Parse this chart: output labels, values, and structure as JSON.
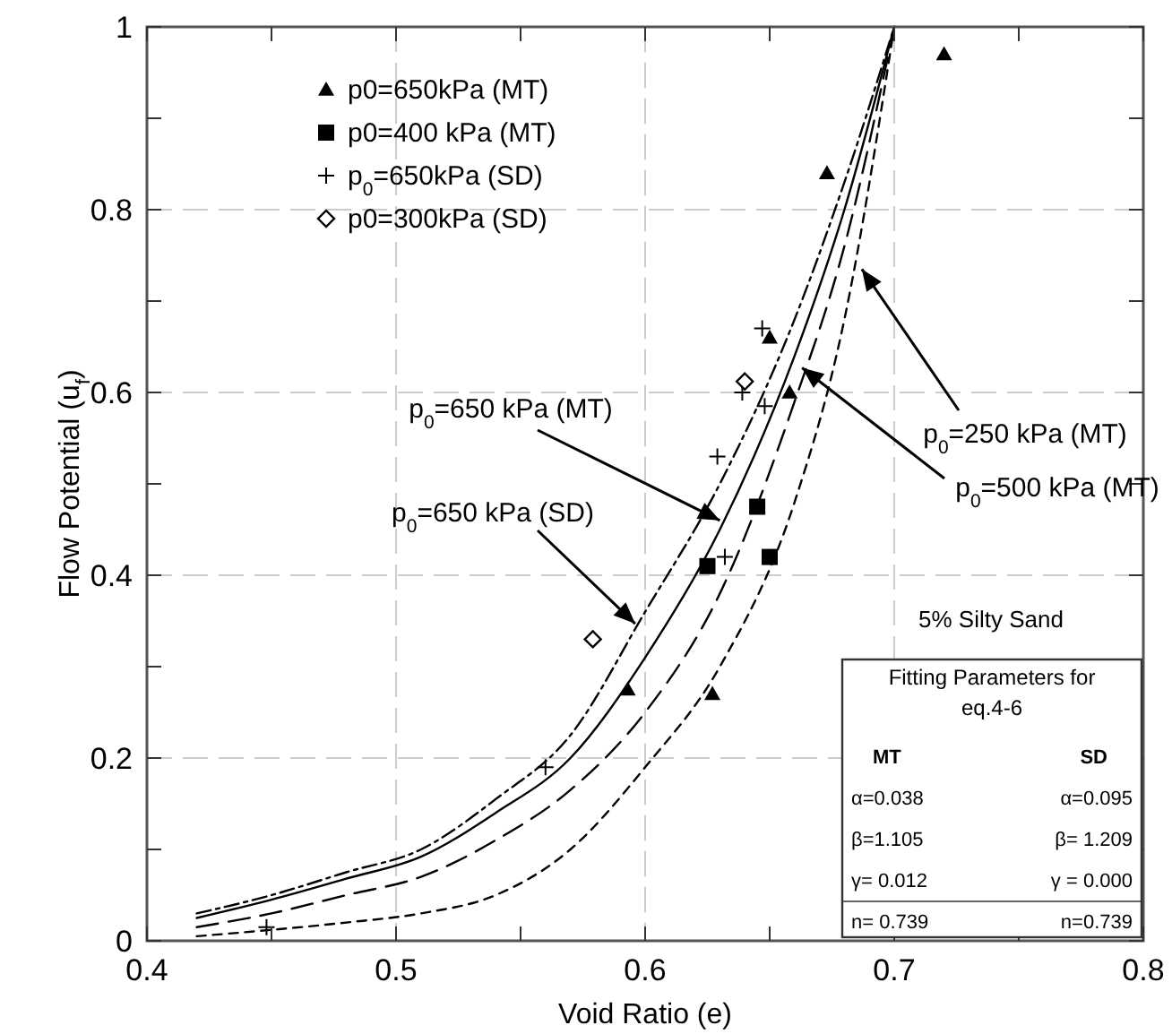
{
  "chart_data": {
    "type": "scatter",
    "xlabel": "Void Ratio (e)",
    "ylabel": "Flow Potential (u$_{f}$)",
    "xlim": [
      0.4,
      0.8
    ],
    "xticks": [
      0.4,
      0.5,
      0.6,
      0.7,
      0.8
    ],
    "ylim": [
      0,
      1
    ],
    "yticks": [
      0,
      0.2,
      0.4,
      0.6,
      0.8,
      1
    ],
    "grid": true,
    "legend": "top left",
    "series": [
      {
        "name": "p0=650kPa (MT)",
        "marker": "triangle",
        "color": "#000000",
        "x": [
          0.72,
          0.673,
          0.65,
          0.658,
          0.593,
          0.627
        ],
        "values": [
          0.97,
          0.84,
          0.66,
          0.6,
          0.275,
          0.27
        ]
      },
      {
        "name": "p0=400 kPa (MT)",
        "marker": "square",
        "color": "#000000",
        "x": [
          0.645,
          0.65,
          0.625
        ],
        "values": [
          0.475,
          0.42,
          0.41
        ]
      },
      {
        "name": "p$_{0}$=650kPa (SD)",
        "marker": "cross",
        "color": "#000000",
        "x": [
          0.647,
          0.639,
          0.648,
          0.629,
          0.632,
          0.56,
          0.448
        ],
        "values": [
          0.67,
          0.6,
          0.585,
          0.53,
          0.42,
          0.19,
          0.015
        ]
      },
      {
        "name": "p0=300kPa (SD)",
        "marker": "diamond",
        "color": "#000000",
        "x": [
          0.64,
          0.579
        ],
        "values": [
          0.612,
          0.33
        ]
      },
      {
        "type": "line",
        "line_style": "solid",
        "color": "#000000",
        "x": [
          0.42,
          0.45,
          0.48,
          0.51,
          0.54,
          0.57,
          0.6,
          0.63,
          0.66,
          0.68,
          0.7
        ],
        "values": [
          0.025,
          0.045,
          0.068,
          0.092,
          0.14,
          0.2,
          0.31,
          0.45,
          0.64,
          0.8,
          1.0
        ]
      },
      {
        "type": "line",
        "line_style": "dashed",
        "color": "#000000",
        "x": [
          0.42,
          0.45,
          0.48,
          0.51,
          0.54,
          0.57,
          0.6,
          0.63,
          0.66,
          0.68,
          0.7
        ],
        "values": [
          0.03,
          0.05,
          0.075,
          0.1,
          0.155,
          0.225,
          0.36,
          0.5,
          0.68,
          0.83,
          1.0
        ]
      },
      {
        "type": "line",
        "line_style": "dashed",
        "color": "#000000",
        "x": [
          0.42,
          0.45,
          0.48,
          0.51,
          0.54,
          0.57,
          0.6,
          0.63,
          0.66,
          0.68,
          0.7
        ],
        "values": [
          0.015,
          0.03,
          0.05,
          0.07,
          0.11,
          0.165,
          0.25,
          0.38,
          0.59,
          0.76,
          1.0
        ]
      },
      {
        "type": "line",
        "line_style": "dashed",
        "color": "#000000",
        "x": [
          0.42,
          0.45,
          0.48,
          0.51,
          0.54,
          0.57,
          0.6,
          0.63,
          0.66,
          0.68,
          0.7
        ],
        "values": [
          0.005,
          0.012,
          0.02,
          0.03,
          0.05,
          0.1,
          0.19,
          0.3,
          0.48,
          0.68,
          1.0
        ]
      }
    ],
    "annotations": [
      {
        "text": "p$_{0}$=650 kPa (SD)",
        "x": 0.596,
        "y": 0.347
      },
      {
        "text": "p$_{0}$=650 kPa (MT)",
        "x": 0.63,
        "y": 0.46
      },
      {
        "text": "p$_{0}$=250 kPa (MT)",
        "x": 0.687,
        "y": 0.735
      },
      {
        "text": "p$_{0}$=500 kPa (MT)",
        "x": 0.663,
        "y": 0.627
      },
      "5% Silty Sand",
      "Fitting Parameters for eq.4-6",
      "MT",
      "SD",
      "α=0.038",
      "α=0.095",
      "β=1.105",
      "β= 1.209",
      "γ= 0.012",
      "γ = 0.000",
      "n= 0.739",
      "n=0.739"
    ]
  }
}
